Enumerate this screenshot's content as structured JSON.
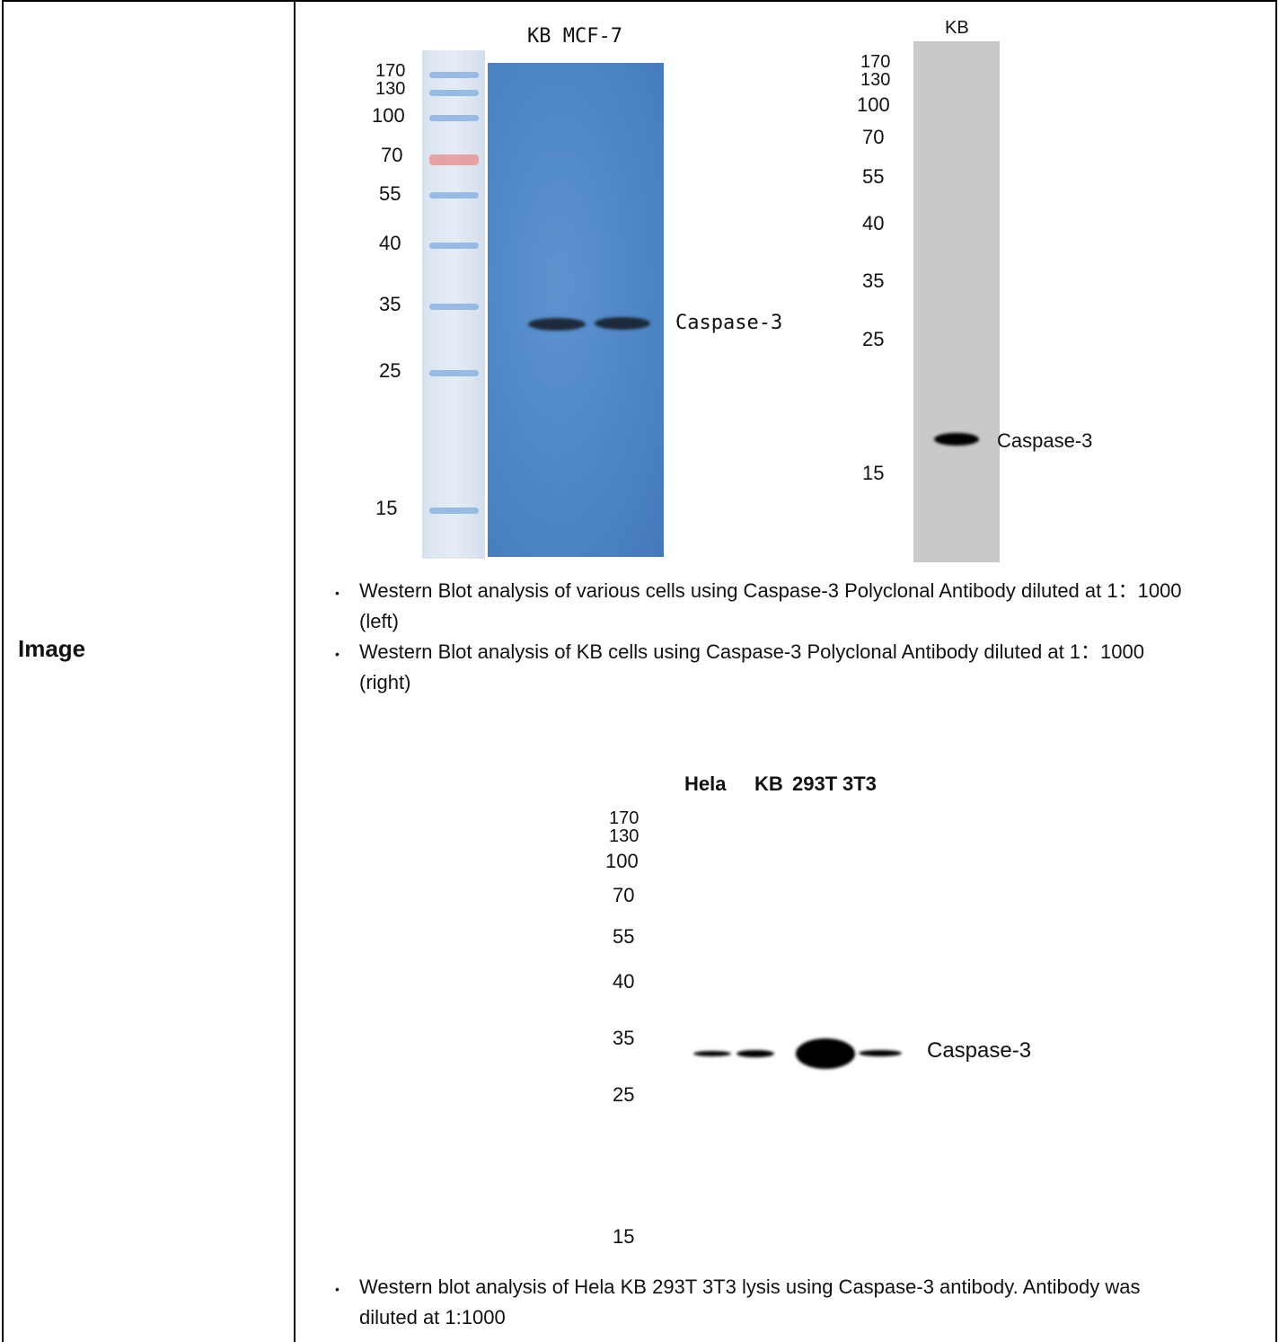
{
  "row_label": "Image",
  "panel_a": {
    "lanes_label": "KB MCF-7",
    "markers": [
      "170",
      "130",
      "100",
      "70",
      "55",
      "40",
      "35",
      "25",
      "15"
    ],
    "band_label": "Caspase-3"
  },
  "panel_b": {
    "lanes_label": "KB",
    "markers": [
      "170",
      "130",
      "100",
      "70",
      "55",
      "40",
      "35",
      "25",
      "15"
    ],
    "band_label": "Caspase-3"
  },
  "panel_c": {
    "lanes": [
      "Hela",
      "KB",
      "293T",
      "3T3"
    ],
    "markers": [
      "170",
      "130",
      "100",
      "70",
      "55",
      "40",
      "35",
      "25",
      "15"
    ],
    "band_label": "Caspase-3"
  },
  "captions": [
    {
      "line1": "Western Blot analysis of various cells using Caspase-3 Polyclonal Antibody diluted at 1：1000",
      "line2": "(left)"
    },
    {
      "line1": "Western Blot analysis of KB cells using Caspase-3 Polyclonal Antibody diluted at 1：1000",
      "line2": "(right)"
    },
    {
      "line1": "Western blot analysis of Hela KB 293T 3T3 lysis using Caspase-3 antibody. Antibody was",
      "line2": "diluted at 1:1000"
    }
  ],
  "bullet_glyph": "•"
}
